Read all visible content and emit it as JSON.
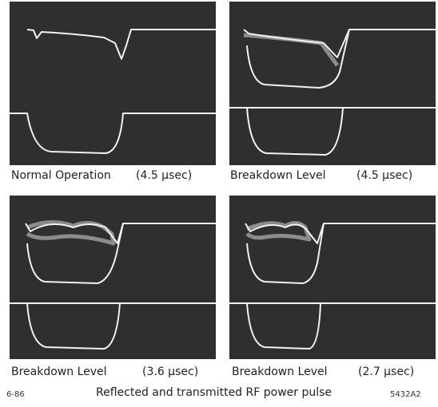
{
  "panels": [
    {
      "label": "Normal Operation",
      "duration": "(4.5 μsec)"
    },
    {
      "label": "Breakdown Level",
      "duration": "(4.5 μsec)"
    },
    {
      "label": "Breakdown Level",
      "duration": "(3.6 μsec)"
    },
    {
      "label": "Breakdown Level",
      "duration": "(2.7 μsec)"
    }
  ],
  "caption": "Reflected and transmitted RF power pulse",
  "figure_id_left": "6-86",
  "figure_id_right": "5432A2"
}
